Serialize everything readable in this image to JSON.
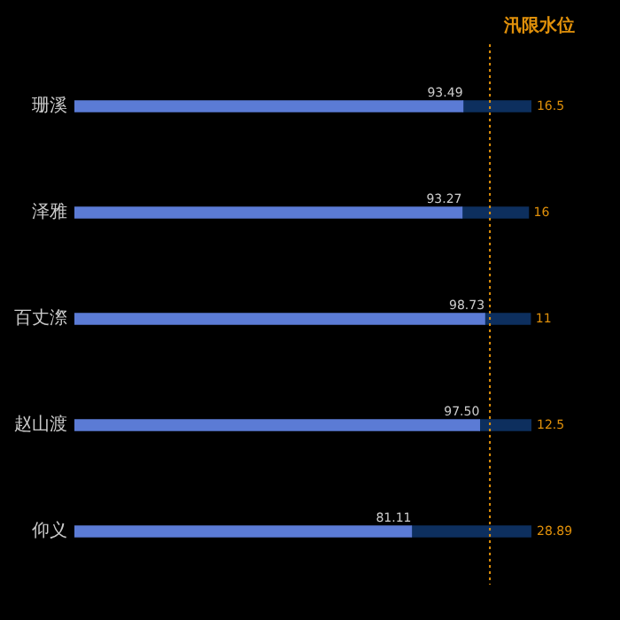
{
  "chart_data": {
    "type": "bar",
    "orientation": "horizontal",
    "stacked": true,
    "categories": [
      "珊溪",
      "泽雅",
      "百丈漈",
      "赵山渡",
      "仰义"
    ],
    "series": [
      {
        "color": "#5b7bd5",
        "values": [
          93.49,
          93.27,
          98.73,
          97.5,
          81.11
        ],
        "value_labels": [
          "93.49",
          "93.27",
          "98.73",
          "97.50",
          "81.11"
        ]
      },
      {
        "color": "#0d2f5e",
        "values": [
          16.5,
          16,
          11,
          12.5,
          28.89
        ],
        "value_labels": [
          "16.5",
          "16",
          "11",
          "12.5",
          "28.89"
        ]
      }
    ],
    "xlim": [
      0,
      110
    ],
    "tick_labels": "y",
    "legend": false,
    "ref_lines": [
      {
        "axis": "x",
        "value": 100,
        "label": "汛限水位",
        "color": "#e0900a",
        "line_style": "dotted"
      }
    ]
  }
}
